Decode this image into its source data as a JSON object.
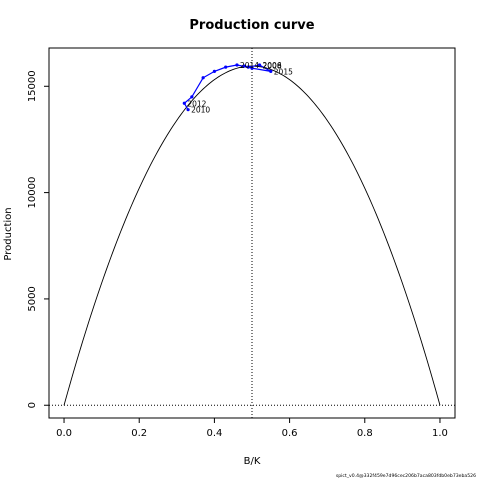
{
  "chart_data": {
    "type": "line",
    "title": "Production curve",
    "xlabel": "B/K",
    "ylabel": "Production",
    "xlim": [
      -0.04,
      1.04
    ],
    "ylim": [
      -600,
      16800
    ],
    "x_ticks": [
      0.0,
      0.2,
      0.4,
      0.6,
      0.8,
      1.0
    ],
    "x_tick_labels": [
      "0.0",
      "0.2",
      "0.4",
      "0.6",
      "0.8",
      "1.0"
    ],
    "y_ticks": [
      0,
      5000,
      10000,
      15000
    ],
    "y_tick_labels": [
      "0",
      "5000",
      "10000",
      "15000"
    ],
    "reference_lines": {
      "vertical_x": 0.5,
      "horizontal_y": 0
    },
    "series": [
      {
        "kind": "curve",
        "color": "#000000",
        "max_production": 15950,
        "x_range": [
          0,
          1
        ]
      },
      {
        "kind": "trajectory",
        "color": "#0000ff",
        "x": [
          0.33,
          0.32,
          0.34,
          0.37,
          0.4,
          0.43,
          0.46,
          0.49,
          0.52,
          0.55,
          0.5,
          0.48
        ],
        "y": [
          13900,
          14200,
          14500,
          15400,
          15700,
          15900,
          16000,
          15900,
          16000,
          15700,
          15850,
          15950
        ]
      }
    ],
    "point_labels": [
      {
        "text": "2010",
        "x": 0.33,
        "y": 13900
      },
      {
        "text": "2012",
        "x": 0.32,
        "y": 14200
      },
      {
        "text": "2014",
        "x": 0.46,
        "y": 16000
      },
      {
        "text": "2006",
        "x": 0.52,
        "y": 16000
      },
      {
        "text": "2008",
        "x": 0.52,
        "y": 15980
      },
      {
        "text": "2015",
        "x": 0.55,
        "y": 15700
      }
    ]
  },
  "footer": "spict_v0.4@332f459e7d96cec206b7aca803fdb0eb73eba526"
}
